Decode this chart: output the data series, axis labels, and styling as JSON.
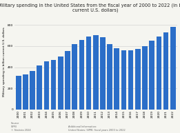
{
  "title": "Military spending in the United States from the fiscal year of 2000 to 2022 (in billion\ncurrent U.S. dollars)",
  "ylabel": "Military spending in billion current U.S. dollars",
  "years": [
    "2000",
    "2001",
    "2002",
    "2003",
    "2004",
    "2005",
    "2006",
    "2007",
    "2008",
    "2009",
    "2010",
    "2011",
    "2012",
    "2013",
    "2014",
    "2015",
    "2016",
    "2017",
    "2018",
    "2019",
    "2020",
    "2021",
    "2022"
  ],
  "values": [
    320,
    330,
    365,
    415,
    455,
    470,
    500,
    552,
    616,
    661,
    693,
    705,
    681,
    619,
    577,
    560,
    560,
    570,
    600,
    650,
    690,
    730,
    782
  ],
  "bar_color": "#2b6ec8",
  "background_color": "#f5f5f0",
  "plot_bg_color": "#f5f5f0",
  "grid_color": "#cccccc",
  "ylim": [
    0,
    900
  ],
  "yticks": [
    0,
    200,
    400,
    600,
    800
  ],
  "ytick_labels": [
    "0",
    "200",
    "400",
    "600",
    "800"
  ],
  "title_fontsize": 4.8,
  "ylabel_fontsize": 3.2,
  "tick_fontsize": 3.2,
  "source_text": "Source\nSIPRI\n© Statista 2024",
  "additional_text": "Additional Information:\nUnited States; SIPRI; fiscal years 2000 to 2022"
}
